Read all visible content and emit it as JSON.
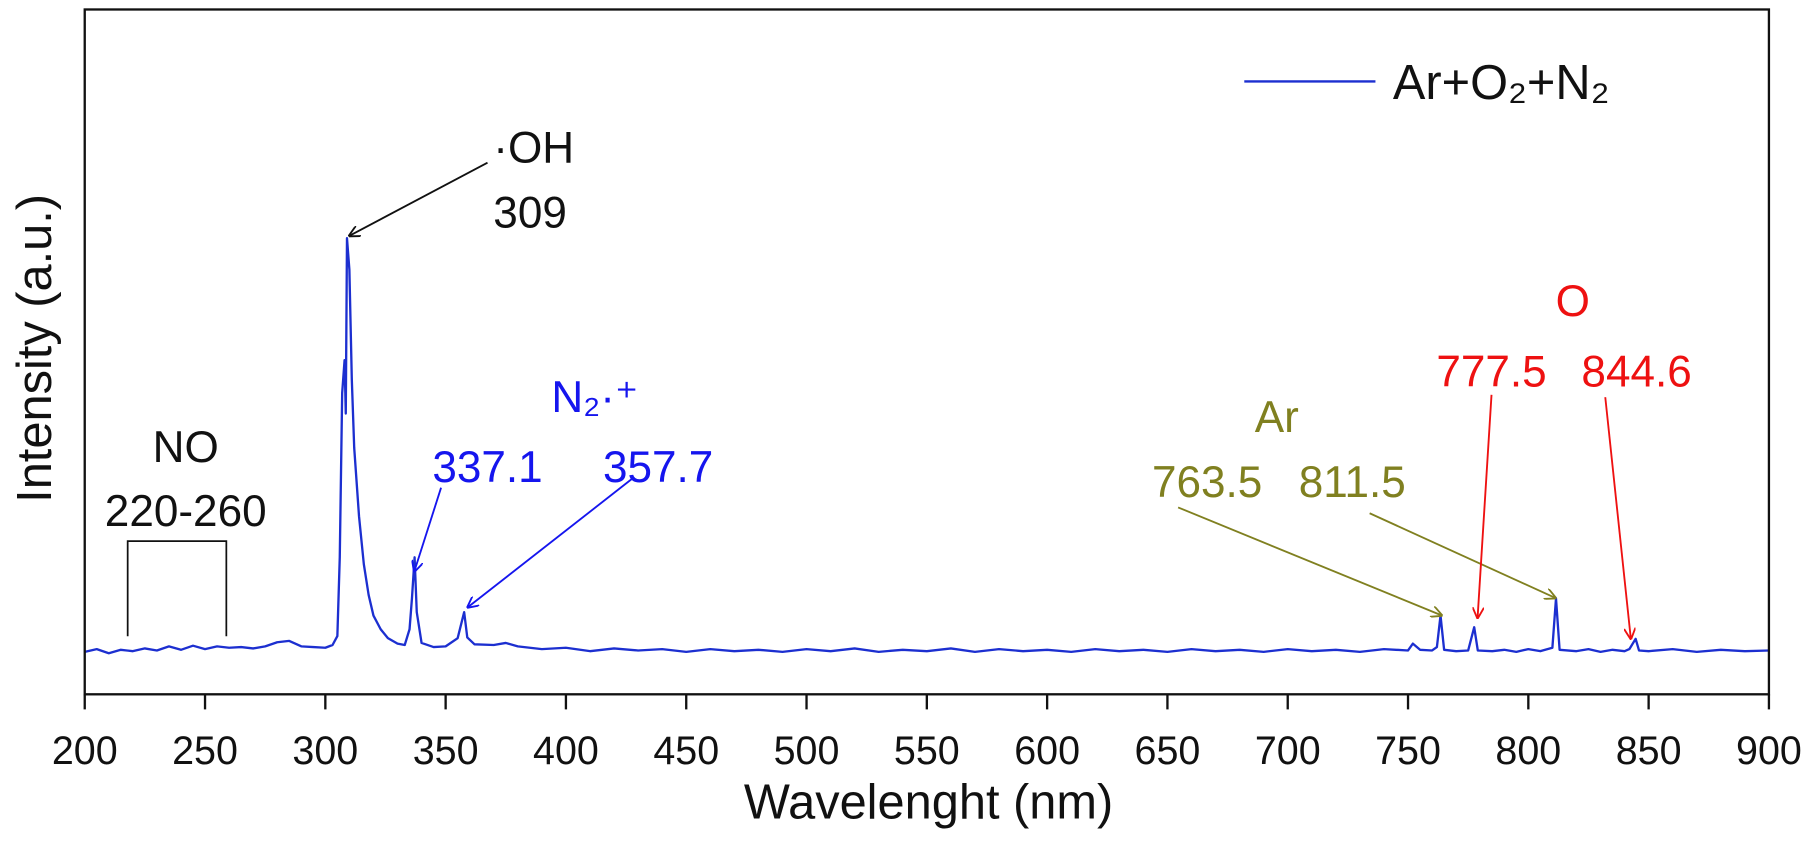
{
  "chart_data": {
    "type": "line",
    "xlabel": "Wavelenght (nm)",
    "ylabel": "Intensity (a.u.)",
    "xlim": [
      200,
      900
    ],
    "xticks": [
      200,
      250,
      300,
      350,
      400,
      450,
      500,
      550,
      600,
      650,
      700,
      750,
      800,
      850,
      900
    ],
    "ylim": [
      0,
      100
    ],
    "legend": "upper right",
    "x": [
      200,
      205,
      210,
      215,
      220,
      225,
      230,
      235,
      240,
      245,
      250,
      255,
      260,
      265,
      270,
      275,
      280,
      285,
      290,
      295,
      300,
      303,
      305,
      306,
      307,
      308,
      308.5,
      309,
      310,
      311,
      312,
      314,
      316,
      318,
      320,
      323,
      326,
      330,
      333,
      335,
      336,
      337.1,
      338,
      340,
      345,
      350,
      355,
      357.7,
      359,
      362,
      370,
      375,
      380,
      390,
      400,
      410,
      420,
      430,
      440,
      450,
      460,
      470,
      480,
      490,
      500,
      510,
      520,
      530,
      540,
      550,
      560,
      570,
      580,
      590,
      600,
      610,
      620,
      630,
      640,
      650,
      660,
      670,
      680,
      690,
      700,
      710,
      720,
      730,
      740,
      750,
      752,
      755,
      760,
      762,
      763.5,
      765,
      770,
      775,
      777.5,
      779,
      785,
      790,
      795,
      800,
      805,
      810,
      811.5,
      813,
      820,
      825,
      830,
      835,
      840,
      842,
      844.6,
      846,
      850,
      860,
      870,
      880,
      890,
      900
    ],
    "series": [
      {
        "name": "Ar+O₂+N₂",
        "color": "#1c2fd0",
        "values": [
          6.2,
          6.6,
          6.0,
          6.5,
          6.3,
          6.7,
          6.4,
          7.0,
          6.5,
          7.1,
          6.6,
          7.0,
          6.8,
          6.9,
          6.7,
          7.0,
          7.6,
          7.8,
          7.0,
          6.9,
          6.8,
          7.2,
          8.5,
          20,
          44,
          48.8,
          41,
          66.6,
          62,
          46,
          36,
          26,
          19,
          14.5,
          11.5,
          9.5,
          8.2,
          7.4,
          7.2,
          9.5,
          14,
          20,
          12,
          7.5,
          6.9,
          7.0,
          8.2,
          12,
          8.3,
          7.3,
          7.2,
          7.5,
          7.0,
          6.6,
          6.8,
          6.3,
          6.7,
          6.4,
          6.6,
          6.2,
          6.6,
          6.3,
          6.5,
          6.2,
          6.6,
          6.3,
          6.7,
          6.2,
          6.5,
          6.3,
          6.7,
          6.2,
          6.6,
          6.3,
          6.5,
          6.2,
          6.6,
          6.3,
          6.5,
          6.2,
          6.6,
          6.3,
          6.5,
          6.2,
          6.6,
          6.3,
          6.5,
          6.2,
          6.6,
          6.4,
          7.4,
          6.5,
          6.4,
          6.9,
          11.5,
          6.5,
          6.3,
          6.4,
          9.8,
          6.4,
          6.3,
          6.5,
          6.2,
          6.6,
          6.3,
          6.8,
          14,
          6.5,
          6.3,
          6.6,
          6.2,
          6.5,
          6.3,
          6.6,
          8.1,
          6.4,
          6.3,
          6.6,
          6.2,
          6.5,
          6.3,
          6.4
        ]
      }
    ],
    "annotations": [
      {
        "text": "·OH",
        "color": "#111111"
      },
      {
        "text": "309",
        "color": "#111111"
      },
      {
        "text": "NO",
        "color": "#111111"
      },
      {
        "text": "220-260",
        "color": "#111111"
      },
      {
        "text": "N₂·⁺",
        "color": "#1515ee"
      },
      {
        "text": "337.1",
        "color": "#1515ee"
      },
      {
        "text": "357.7",
        "color": "#1515ee"
      },
      {
        "text": "Ar",
        "color": "#808020"
      },
      {
        "text": "763.5",
        "color": "#808020"
      },
      {
        "text": "811.5",
        "color": "#808020"
      },
      {
        "text": "O",
        "color": "#ee1111"
      },
      {
        "text": "777.5",
        "color": "#ee1111"
      },
      {
        "text": "844.6",
        "color": "#ee1111"
      }
    ]
  }
}
